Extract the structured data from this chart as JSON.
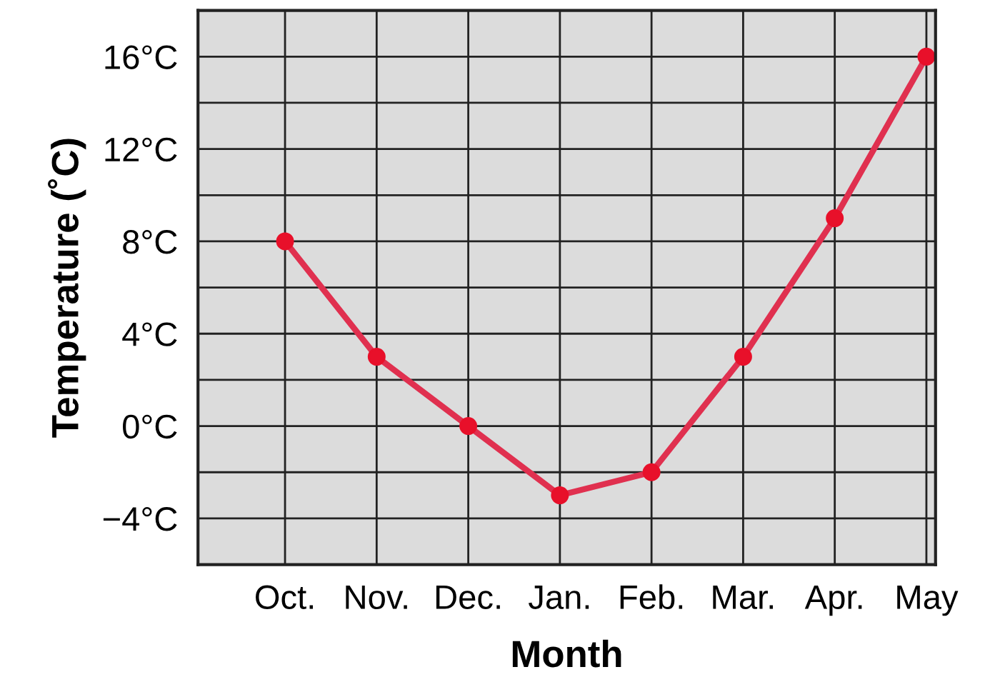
{
  "chart_data": {
    "type": "line",
    "xlabel": "Month",
    "ylabel": "Temperature (˚C)",
    "categories": [
      "Oct.",
      "Nov.",
      "Dec.",
      "Jan.",
      "Feb.",
      "Mar.",
      "Apr.",
      "May"
    ],
    "series": [
      {
        "color": "#e0304f",
        "values": [
          8,
          3,
          0,
          -3,
          -2,
          3,
          9,
          16
        ]
      }
    ],
    "ylim": [
      -6,
      18
    ],
    "yticks": [
      {
        "value": -4,
        "label": "−4°C"
      },
      {
        "value": -2,
        "label": null
      },
      {
        "value": 0,
        "label": "0°C"
      },
      {
        "value": 2,
        "label": null
      },
      {
        "value": 4,
        "label": "4°C"
      },
      {
        "value": 6,
        "label": null
      },
      {
        "value": 8,
        "label": "8°C"
      },
      {
        "value": 10,
        "label": null
      },
      {
        "value": 12,
        "label": "12°C"
      },
      {
        "value": 14,
        "label": null
      },
      {
        "value": 16,
        "label": "16°C"
      }
    ],
    "grid": true,
    "marker": "circle",
    "line_style": "solid"
  }
}
